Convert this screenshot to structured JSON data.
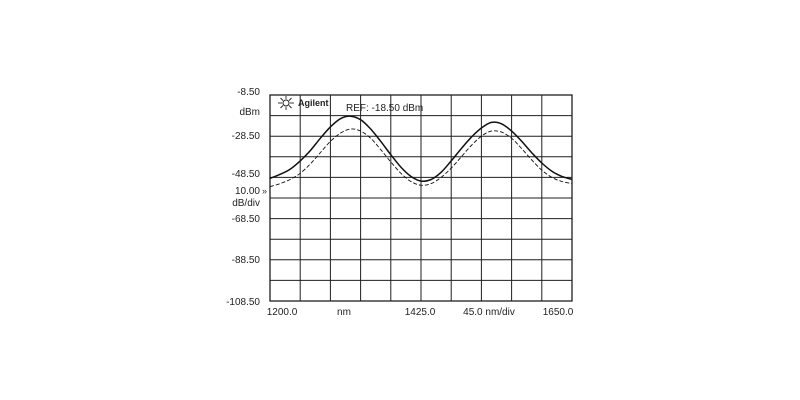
{
  "chart_data": {
    "type": "line",
    "brand": "Agilent",
    "ref_label": "REF: -18.50 dBm",
    "y_unit": "dBm",
    "y_scale_value": "10.00",
    "y_scale_unit": "dB/div",
    "y_ticks": [
      "-8.50",
      "-28.50",
      "-48.50",
      "-68.50",
      "-88.50",
      "-108.50"
    ],
    "x_ticks": [
      "1200.0",
      "nm",
      "1425.0",
      "45.0 nm/div",
      "1650.0"
    ],
    "xlim": [
      1200,
      1650
    ],
    "ylim": [
      -108.5,
      -8.5
    ],
    "grid": true,
    "series": [
      {
        "style": "solid",
        "x": [
          1200,
          1215,
          1230,
          1245,
          1260,
          1275,
          1290,
          1305,
          1320,
          1335,
          1350,
          1365,
          1380,
          1395,
          1410,
          1425,
          1440,
          1455,
          1470,
          1485,
          1500,
          1515,
          1530,
          1545,
          1560,
          1575,
          1590,
          1605,
          1620,
          1635,
          1650
        ],
        "y": [
          -49.0,
          -47.0,
          -44.5,
          -40.5,
          -35.5,
          -29.5,
          -24.0,
          -20.0,
          -18.8,
          -20.5,
          -25.0,
          -31.0,
          -37.5,
          -43.5,
          -48.0,
          -50.3,
          -49.5,
          -46.0,
          -40.5,
          -34.5,
          -29.0,
          -24.5,
          -21.8,
          -22.5,
          -26.0,
          -31.0,
          -36.5,
          -41.5,
          -45.5,
          -48.0,
          -49.5
        ]
      },
      {
        "style": "dashed",
        "x": [
          1200,
          1215,
          1230,
          1245,
          1260,
          1275,
          1290,
          1305,
          1320,
          1335,
          1350,
          1365,
          1380,
          1395,
          1410,
          1425,
          1440,
          1455,
          1470,
          1485,
          1500,
          1515,
          1530,
          1545,
          1560,
          1575,
          1590,
          1605,
          1620,
          1635,
          1650
        ],
        "y": [
          -53.0,
          -51.5,
          -49.5,
          -46.5,
          -42.0,
          -36.5,
          -31.0,
          -27.0,
          -25.0,
          -26.0,
          -29.5,
          -35.0,
          -41.0,
          -46.5,
          -50.5,
          -52.3,
          -51.5,
          -48.5,
          -44.0,
          -38.5,
          -33.0,
          -28.5,
          -26.0,
          -26.5,
          -29.5,
          -34.5,
          -40.0,
          -45.0,
          -48.5,
          -50.5,
          -51.5
        ]
      }
    ]
  },
  "colors": {
    "grid": "#1f1f1f",
    "trace": "#111111"
  }
}
